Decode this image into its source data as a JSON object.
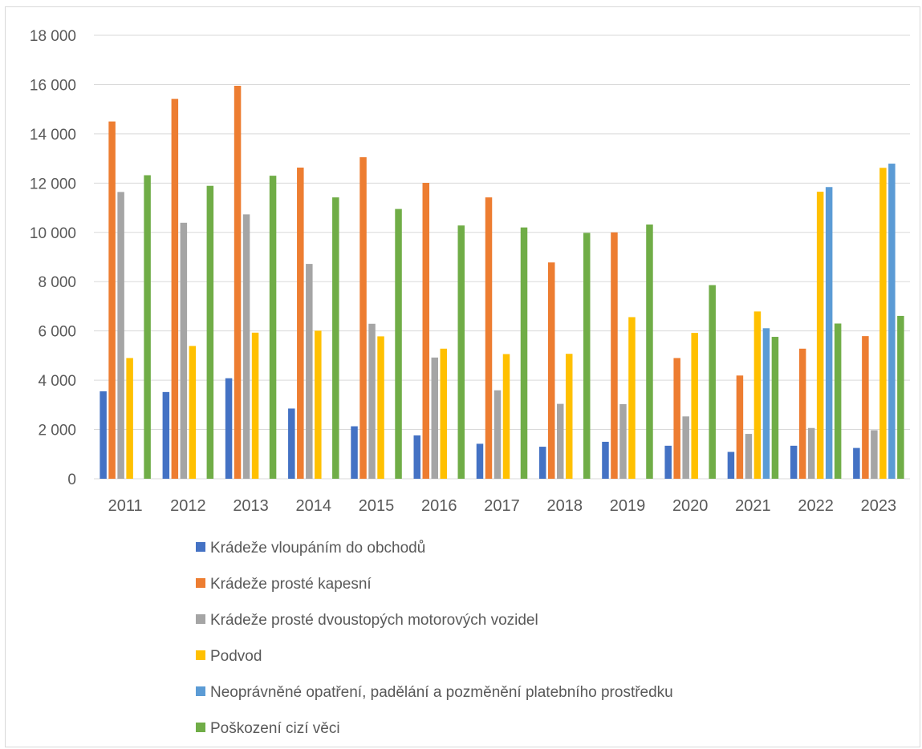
{
  "chart_data": {
    "type": "bar",
    "categories": [
      "2011",
      "2012",
      "2013",
      "2014",
      "2015",
      "2016",
      "2017",
      "2018",
      "2019",
      "2020",
      "2021",
      "2022",
      "2023"
    ],
    "ylim": [
      0,
      18000
    ],
    "yticks": [
      0,
      2000,
      4000,
      6000,
      8000,
      10000,
      12000,
      14000,
      16000,
      18000
    ],
    "ytick_labels": [
      "0",
      "2 000",
      "4 000",
      "6 000",
      "8 000",
      "10 000",
      "12 000",
      "14 000",
      "16 000",
      "18 000"
    ],
    "grid": true,
    "legend_position": "bottom",
    "series": [
      {
        "name": "Krádeže vloupáním do obchodů",
        "color": "#4472c4",
        "values": [
          3550,
          3520,
          4080,
          2850,
          2130,
          1760,
          1420,
          1300,
          1500,
          1340,
          1090,
          1340,
          1250
        ]
      },
      {
        "name": "Krádeže prosté kapesní",
        "color": "#ed7d31",
        "values": [
          14500,
          15420,
          15950,
          12630,
          13050,
          12010,
          11420,
          8780,
          10000,
          4900,
          4190,
          5280,
          5790
        ]
      },
      {
        "name": "Krádeže prosté dvoustopých motorových vozidel",
        "color": "#a5a5a5",
        "values": [
          11640,
          10390,
          10730,
          8720,
          6290,
          4920,
          3590,
          3040,
          3030,
          2530,
          1820,
          2060,
          1970
        ]
      },
      {
        "name": "Podvod",
        "color": "#ffc000",
        "values": [
          4900,
          5390,
          5930,
          6010,
          5780,
          5280,
          5060,
          5070,
          6560,
          5920,
          6790,
          11650,
          12620
        ]
      },
      {
        "name": "Neoprávněné opatření, padělání a pozměnění platebního prostředku",
        "color": "#5b9bd5",
        "values": [
          null,
          null,
          null,
          null,
          null,
          null,
          null,
          null,
          null,
          null,
          6110,
          11840,
          12790
        ]
      },
      {
        "name": "Poškození cizí věci",
        "color": "#70ad47",
        "values": [
          12320,
          11890,
          12300,
          11420,
          10950,
          10280,
          10200,
          9980,
          10320,
          7860,
          5760,
          6300,
          6610
        ]
      }
    ]
  }
}
